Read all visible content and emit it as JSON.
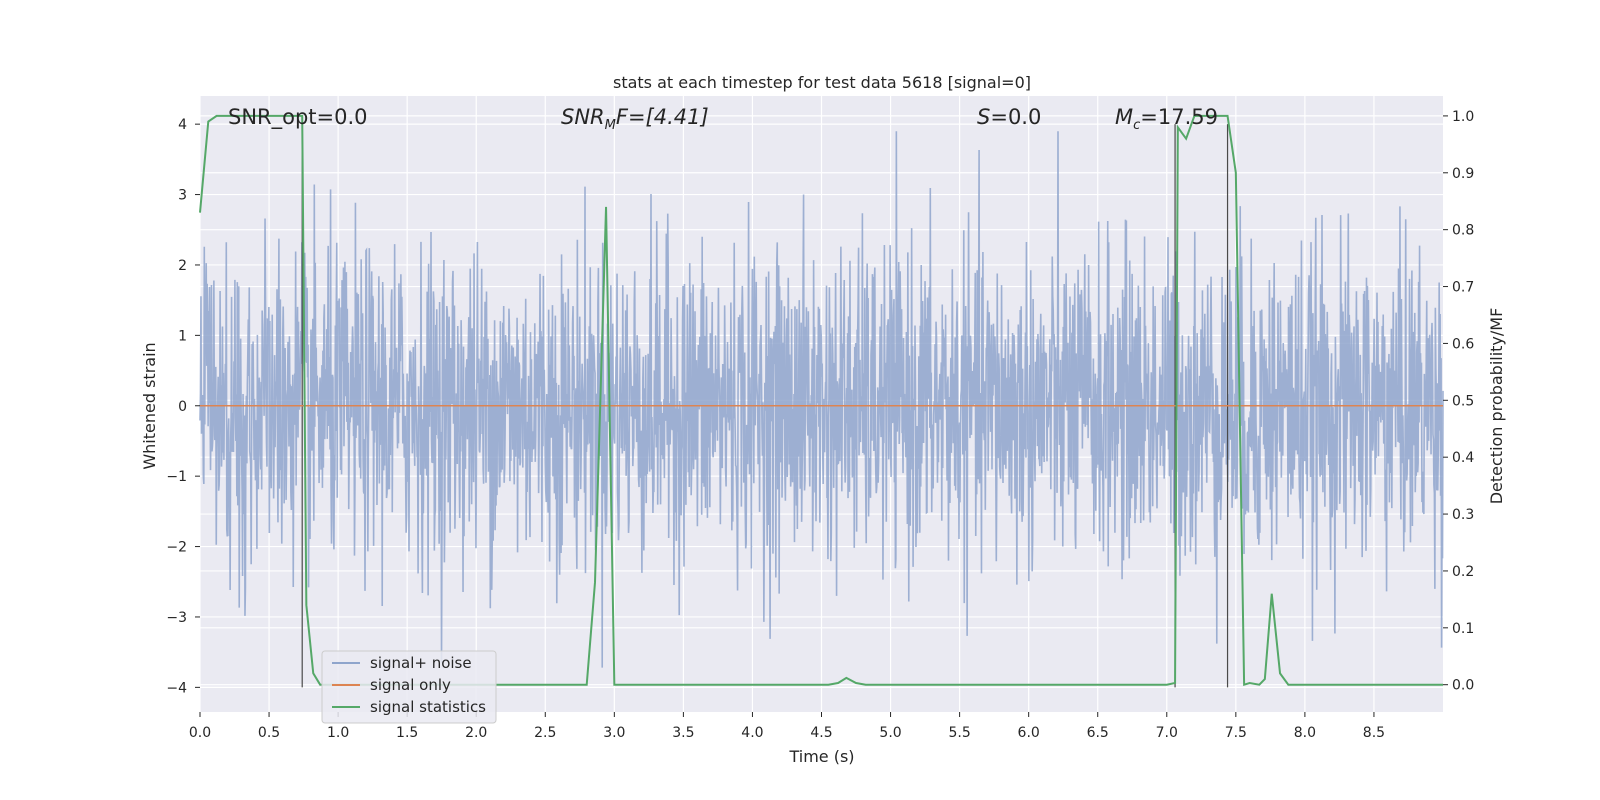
{
  "chart_data": {
    "type": "line",
    "title": "stats at each timestep for test data 5618 [signal=0]",
    "xlabel": "Time (s)",
    "ylabel_left": "Whitened strain",
    "ylabel_right": "Detection probability/MF",
    "xlim": [
      0.0,
      9.0
    ],
    "ylim_left": [
      -4.35,
      4.4
    ],
    "ylim_right": [
      -0.048,
      1.035
    ],
    "x_ticks": [
      "0.0",
      "0.5",
      "1.0",
      "1.5",
      "2.0",
      "2.5",
      "3.0",
      "3.5",
      "4.0",
      "4.5",
      "5.0",
      "5.5",
      "6.0",
      "6.5",
      "7.0",
      "7.5",
      "8.0",
      "8.5"
    ],
    "y_ticks_left": [
      "−4",
      "−3",
      "−2",
      "−1",
      "0",
      "1",
      "2",
      "3",
      "4"
    ],
    "y_ticks_right": [
      "0.0",
      "0.1",
      "0.2",
      "0.3",
      "0.4",
      "0.5",
      "0.6",
      "0.7",
      "0.8",
      "0.9",
      "1.0"
    ],
    "grid": true,
    "legend_placement": "lower-left",
    "annotations": {
      "snr_opt": "SNR_opt=0.0",
      "snr_mf_main": "SNR",
      "snr_mf_sub": "M",
      "snr_mf_rest": "F=[4.41]",
      "s_italic": "S",
      "s_rest": "=0.0",
      "mc_main": "M",
      "mc_sub": "c",
      "mc_rest": "=17.59"
    },
    "vertical_markers_s": [
      0.74,
      7.06,
      7.44
    ],
    "series": [
      {
        "name": "signal+ noise",
        "color": "#8fa5cc",
        "note_values": "dense noise, amplitude about ±2 with spikes up to about ±3.9, mean 0"
      },
      {
        "name": "signal only",
        "color": "#dd8452",
        "x": [
          0.0,
          9.0
        ],
        "y": [
          0.0,
          0.0
        ]
      },
      {
        "name": "signal statistics",
        "color": "#55a868",
        "axis": "right",
        "x": [
          0.0,
          0.06,
          0.12,
          0.6,
          0.74,
          0.77,
          0.82,
          0.87,
          2.8,
          2.86,
          2.94,
          3.0,
          4.55,
          4.62,
          4.68,
          4.75,
          4.82,
          7.0,
          7.06,
          7.08,
          7.14,
          7.2,
          7.44,
          7.5,
          7.56,
          7.6,
          7.67,
          7.71,
          7.76,
          7.82,
          7.88,
          9.0
        ],
        "y": [
          0.83,
          0.99,
          1.0,
          1.0,
          1.0,
          0.14,
          0.02,
          0.0,
          0.0,
          0.18,
          0.84,
          0.0,
          0.0,
          0.003,
          0.012,
          0.003,
          0.0,
          0.0,
          0.003,
          0.98,
          0.96,
          1.0,
          1.0,
          0.9,
          0.0,
          0.003,
          0.0,
          0.01,
          0.16,
          0.02,
          0.0,
          0.0
        ]
      }
    ]
  }
}
